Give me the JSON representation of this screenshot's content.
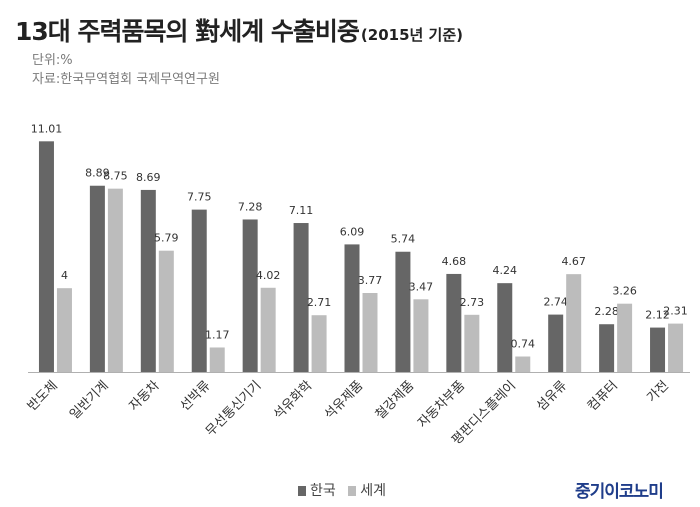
{
  "title": "13대 주력품목의 對세계 수출비중",
  "title_year": "(2015년 기준)",
  "unit": "단위:%",
  "source": "자료:한국무역협회  국제무역연구원",
  "brand": "중기이코노미",
  "colors": {
    "korea": "#666666",
    "world": "#bcbcbc",
    "axis": "#b0b0b0",
    "label": "#333333"
  },
  "chart_data": {
    "type": "bar",
    "categories": [
      "반도체",
      "일반기계",
      "자동차",
      "선박류",
      "무선통신기기",
      "석유화학",
      "석유제품",
      "철강제품",
      "자동차부품",
      "평판디스플레이",
      "섬유류",
      "컴퓨터",
      "가전"
    ],
    "series": [
      {
        "name": "한국",
        "values": [
          11.01,
          8.89,
          8.69,
          7.75,
          7.28,
          7.11,
          6.09,
          5.74,
          4.68,
          4.24,
          2.74,
          2.28,
          2.12
        ],
        "labels": [
          "11.01",
          "8.89",
          "8.69",
          "7.75",
          "7.28",
          "7.11",
          "6.09",
          "5.74",
          "4.68",
          "4.24",
          "2.74",
          "2.28",
          "2.12"
        ]
      },
      {
        "name": "세계",
        "values": [
          4,
          8.75,
          5.79,
          1.17,
          4.02,
          2.71,
          3.77,
          3.47,
          2.73,
          0.74,
          4.67,
          3.26,
          2.31
        ],
        "labels": [
          "4",
          "8.75",
          "5.79",
          "1.17",
          "4.02",
          "2.71",
          "3.77",
          "3.47",
          "2.73",
          "0.74",
          "4.67",
          "3.26",
          "2.31"
        ]
      }
    ],
    "ylim": [
      0,
      12
    ],
    "legend": "bottom",
    "grid": false
  }
}
